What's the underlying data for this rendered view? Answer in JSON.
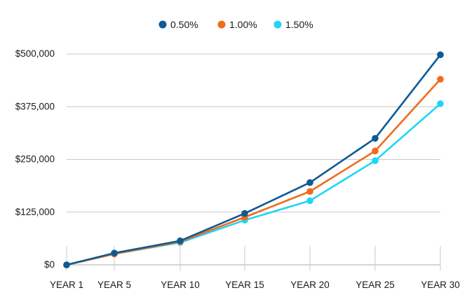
{
  "chart_data": {
    "type": "line",
    "title": "",
    "xlabel": "",
    "ylabel": "",
    "categories": [
      "YEAR 1",
      "YEAR 5",
      "YEAR 10",
      "YEAR 15",
      "YEAR 20",
      "YEAR 25",
      "YEAR 30"
    ],
    "y_tick_labels": [
      "$0",
      "$125,000",
      "$250,000",
      "$375,000",
      "$500,000"
    ],
    "y_ticks": [
      0,
      125000,
      250000,
      375000,
      500000
    ],
    "ylim": [
      0,
      500000
    ],
    "grid": true,
    "legend_position": "top-center",
    "series": [
      {
        "name": "0.50%",
        "color": "#0d5a94",
        "values": [
          0,
          28000,
          57000,
          122000,
          195000,
          300000,
          498000
        ]
      },
      {
        "name": "1.00%",
        "color": "#f26a1b",
        "values": [
          0,
          26000,
          55000,
          113000,
          174000,
          270000,
          440000
        ]
      },
      {
        "name": "1.50%",
        "color": "#1fd5f5",
        "values": [
          0,
          26000,
          53000,
          106000,
          152000,
          247000,
          382000
        ]
      }
    ]
  }
}
